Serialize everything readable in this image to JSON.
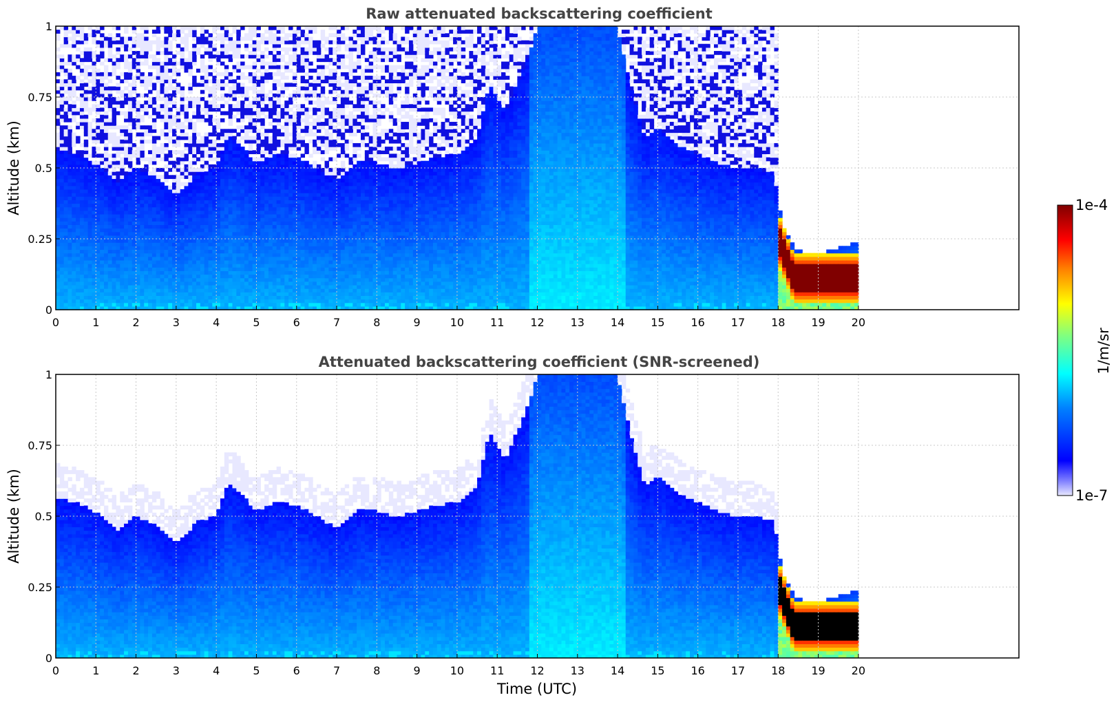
{
  "chart_data": [
    {
      "type": "heatmap",
      "title": "Raw attenuated backscattering coefficient",
      "xlabel": "",
      "ylabel": "Altitude (km)",
      "xlim": [
        0,
        24
      ],
      "ylim": [
        0,
        1
      ],
      "x_ticks": [
        0,
        1,
        2,
        3,
        4,
        5,
        6,
        7,
        8,
        9,
        10,
        11,
        12,
        13,
        14,
        15,
        16,
        17,
        18,
        19,
        20
      ],
      "y_ticks": [
        0,
        0.25,
        0.5,
        0.75,
        1
      ],
      "y_tick_labels": [
        "0",
        "0.25",
        "0.5",
        "0.75",
        "1"
      ],
      "grid": true,
      "data_extent_hours": [
        0,
        20
      ],
      "raw_noise_until_hour": 18.1,
      "screened": false,
      "boundary_layer_top_km": {
        "x": [
          0,
          0.5,
          1.2,
          1.5,
          2,
          2.5,
          3,
          3.5,
          4,
          4.3,
          4.6,
          5,
          5.5,
          6,
          6.5,
          7,
          7.5,
          8,
          8.5,
          9,
          9.5,
          10,
          10.5,
          10.8,
          11.2,
          11.8,
          12,
          13,
          14,
          14.3,
          14.7,
          15,
          15.5,
          16,
          16.5,
          17,
          17.5,
          17.9,
          18.1,
          18.4,
          18.7,
          19,
          19.5,
          20
        ],
        "y": [
          0.57,
          0.55,
          0.5,
          0.45,
          0.5,
          0.47,
          0.4,
          0.48,
          0.5,
          0.62,
          0.58,
          0.52,
          0.55,
          0.54,
          0.5,
          0.46,
          0.52,
          0.52,
          0.5,
          0.52,
          0.54,
          0.55,
          0.6,
          0.8,
          0.7,
          0.9,
          1.0,
          1.0,
          1.0,
          0.8,
          0.6,
          0.65,
          0.58,
          0.55,
          0.52,
          0.5,
          0.5,
          0.48,
          0.3,
          0.22,
          0.2,
          0.2,
          0.22,
          0.24
        ]
      },
      "high_signal_layer": {
        "x_range": [
          18.0,
          20.0
        ],
        "center_km": [
          0.25,
          0.12,
          0.1,
          0.12
        ],
        "peak_value": "1e-4"
      }
    },
    {
      "type": "heatmap",
      "title": "Attenuated backscattering coefficient (SNR-screened)",
      "xlabel": "Time (UTC)",
      "ylabel": "Altitude (km)",
      "xlim": [
        0,
        24
      ],
      "ylim": [
        0,
        1
      ],
      "x_ticks": [
        0,
        1,
        2,
        3,
        4,
        5,
        6,
        7,
        8,
        9,
        10,
        11,
        12,
        13,
        14,
        15,
        16,
        17,
        18,
        19,
        20
      ],
      "y_ticks": [
        0,
        0.25,
        0.5,
        0.75,
        1
      ],
      "y_tick_labels": [
        "0",
        "0.25",
        "0.5",
        "0.75",
        "1"
      ],
      "grid": true,
      "data_extent_hours": [
        0,
        20
      ],
      "screened": true,
      "saturated_color": "#000000"
    }
  ],
  "colorbar": {
    "label": "1/m/sr",
    "min_label": "1e-7",
    "max_label": "1e-4",
    "scale": "log",
    "colormap": "jet",
    "low_color": "#e8e8ff",
    "high_color": "#800000"
  }
}
